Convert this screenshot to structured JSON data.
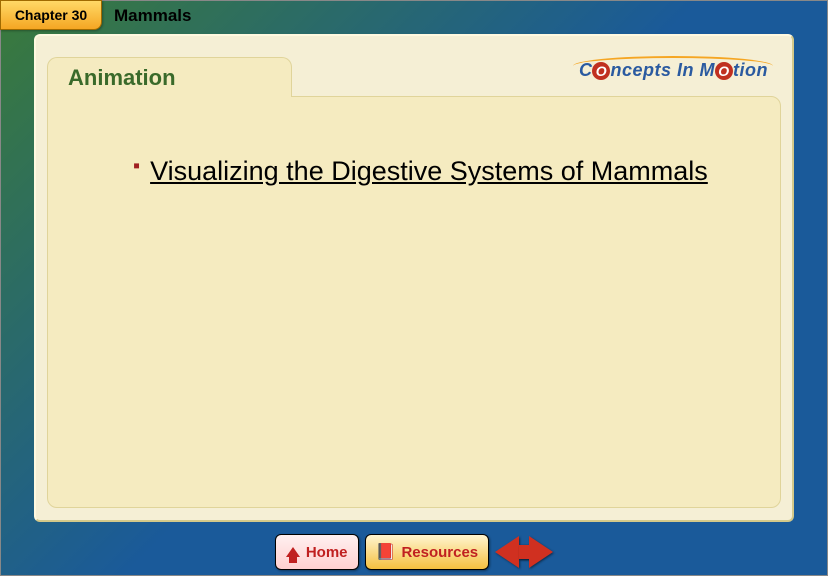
{
  "header": {
    "chapter_badge": "Chapter 30",
    "chapter_title": "Mammals"
  },
  "tab": {
    "label": "Animation"
  },
  "logo": {
    "text_parts": [
      "C",
      "O",
      "ncepts In M",
      "O",
      "tion"
    ],
    "colors": {
      "primary": "#2a5aa0",
      "accent_bg": "#c03020",
      "swoosh": "#f5a623"
    }
  },
  "content": {
    "bullet_color": "#a02020",
    "items": [
      {
        "text": "Visualizing the Digestive Systems of Mammals",
        "underline": true
      }
    ]
  },
  "footer": {
    "home_label": "Home",
    "resources_label": "Resources"
  },
  "palette": {
    "bg_grad_start": "#3a7a3a",
    "bg_grad_end": "#1a5a9a",
    "panel": "#f5efd5",
    "card": "#f5ebc0",
    "tab_text": "#3a6a2a",
    "arrow": "#d03020"
  }
}
